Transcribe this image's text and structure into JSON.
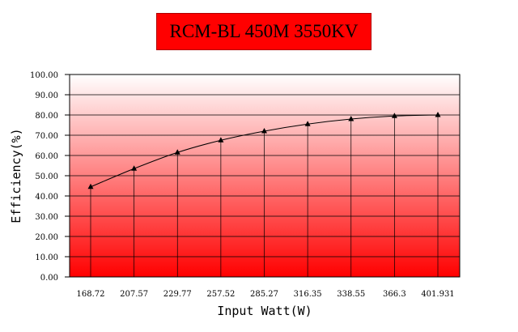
{
  "chart_data": {
    "type": "line",
    "title": "RCM-BL 450M 3550KV",
    "xlabel": "Input Watt(W)",
    "ylabel": "Efficiency(%)",
    "categories": [
      "168.72",
      "207.57",
      "229.77",
      "257.52",
      "285.27",
      "316.35",
      "338.55",
      "366.3",
      "401.931"
    ],
    "series": [
      {
        "values": [
          44.5,
          53.5,
          61.5,
          67.5,
          72.0,
          75.5,
          78.0,
          79.5,
          80.0
        ]
      }
    ],
    "ylim": [
      0,
      100
    ],
    "yticks": [
      "0.00",
      "10.00",
      "20.00",
      "30.00",
      "40.00",
      "50.00",
      "60.00",
      "70.00",
      "80.00",
      "90.00",
      "100.00"
    ],
    "grid": true,
    "background_gradient": [
      "#ffffff",
      "#ff0000"
    ],
    "line_color": "#000000"
  }
}
